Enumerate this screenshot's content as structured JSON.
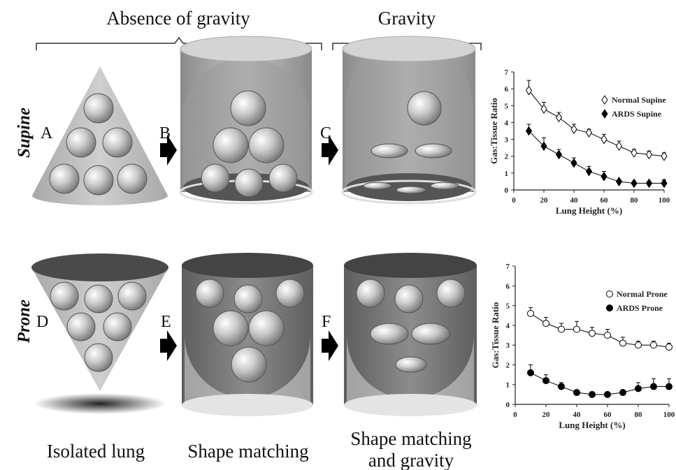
{
  "header": {
    "absence": "Absence of gravity",
    "gravity": "Gravity"
  },
  "rows": {
    "supine": "Supine",
    "prone": "Prone"
  },
  "panels": [
    "A",
    "B",
    "C",
    "D",
    "E",
    "F"
  ],
  "captions": {
    "isolated": "Isolated lung",
    "shape": "Shape matching",
    "shape_gravity": [
      "Shape matching",
      "and gravity"
    ]
  },
  "chart_data": [
    {
      "type": "line",
      "xlabel": "Lung Height (%)",
      "ylabel": "Gas:Tissue Ratio",
      "x": [
        10,
        20,
        30,
        40,
        50,
        60,
        70,
        80,
        90,
        100
      ],
      "xlim": [
        0,
        100
      ],
      "xticks": [
        0,
        20,
        40,
        60,
        80,
        100
      ],
      "ylim": [
        0,
        7
      ],
      "yticks": [
        0,
        1,
        2,
        3,
        4,
        5,
        6,
        7
      ],
      "legend": "upper right",
      "series": [
        {
          "name": "Normal Supine",
          "color": "#000000",
          "marker": "diamond",
          "filled": false,
          "values": [
            5.9,
            4.8,
            4.3,
            3.6,
            3.4,
            3.0,
            2.6,
            2.2,
            2.1,
            2.0
          ],
          "errors": [
            0.6,
            0.4,
            0.3,
            0.3,
            0.2,
            0.3,
            0.3,
            0.2,
            0.2,
            0.2
          ]
        },
        {
          "name": "ARDS Supine",
          "color": "#000000",
          "marker": "diamond",
          "filled": true,
          "values": [
            3.5,
            2.6,
            2.1,
            1.6,
            1.1,
            0.8,
            0.5,
            0.4,
            0.4,
            0.4
          ],
          "errors": [
            0.4,
            0.5,
            0.3,
            0.3,
            0.3,
            0.3,
            0.1,
            0.1,
            0.1,
            0.2
          ]
        }
      ]
    },
    {
      "type": "line",
      "xlabel": "Lung Height (%)",
      "ylabel": "Gas:Tissue Ratio",
      "x": [
        10,
        20,
        30,
        40,
        50,
        60,
        70,
        80,
        90,
        100
      ],
      "xlim": [
        0,
        100
      ],
      "xticks": [
        0,
        20,
        40,
        60,
        80,
        100
      ],
      "ylim": [
        0,
        7
      ],
      "yticks": [
        0,
        1,
        2,
        3,
        4,
        5,
        6,
        7
      ],
      "legend": "upper right",
      "series": [
        {
          "name": "Normal Prone",
          "color": "#000000",
          "marker": "circle",
          "filled": false,
          "values": [
            4.6,
            4.1,
            3.8,
            3.8,
            3.6,
            3.5,
            3.1,
            3.0,
            3.0,
            2.9
          ],
          "errors": [
            0.3,
            0.3,
            0.3,
            0.4,
            0.3,
            0.3,
            0.3,
            0.2,
            0.2,
            0.2
          ]
        },
        {
          "name": "ARDS Prone",
          "color": "#000000",
          "marker": "circle",
          "filled": true,
          "values": [
            1.6,
            1.2,
            0.9,
            0.6,
            0.5,
            0.5,
            0.6,
            0.8,
            0.9,
            0.9
          ],
          "errors": [
            0.4,
            0.3,
            0.2,
            0.1,
            0.1,
            0.1,
            0.1,
            0.3,
            0.4,
            0.4
          ]
        }
      ]
    }
  ]
}
